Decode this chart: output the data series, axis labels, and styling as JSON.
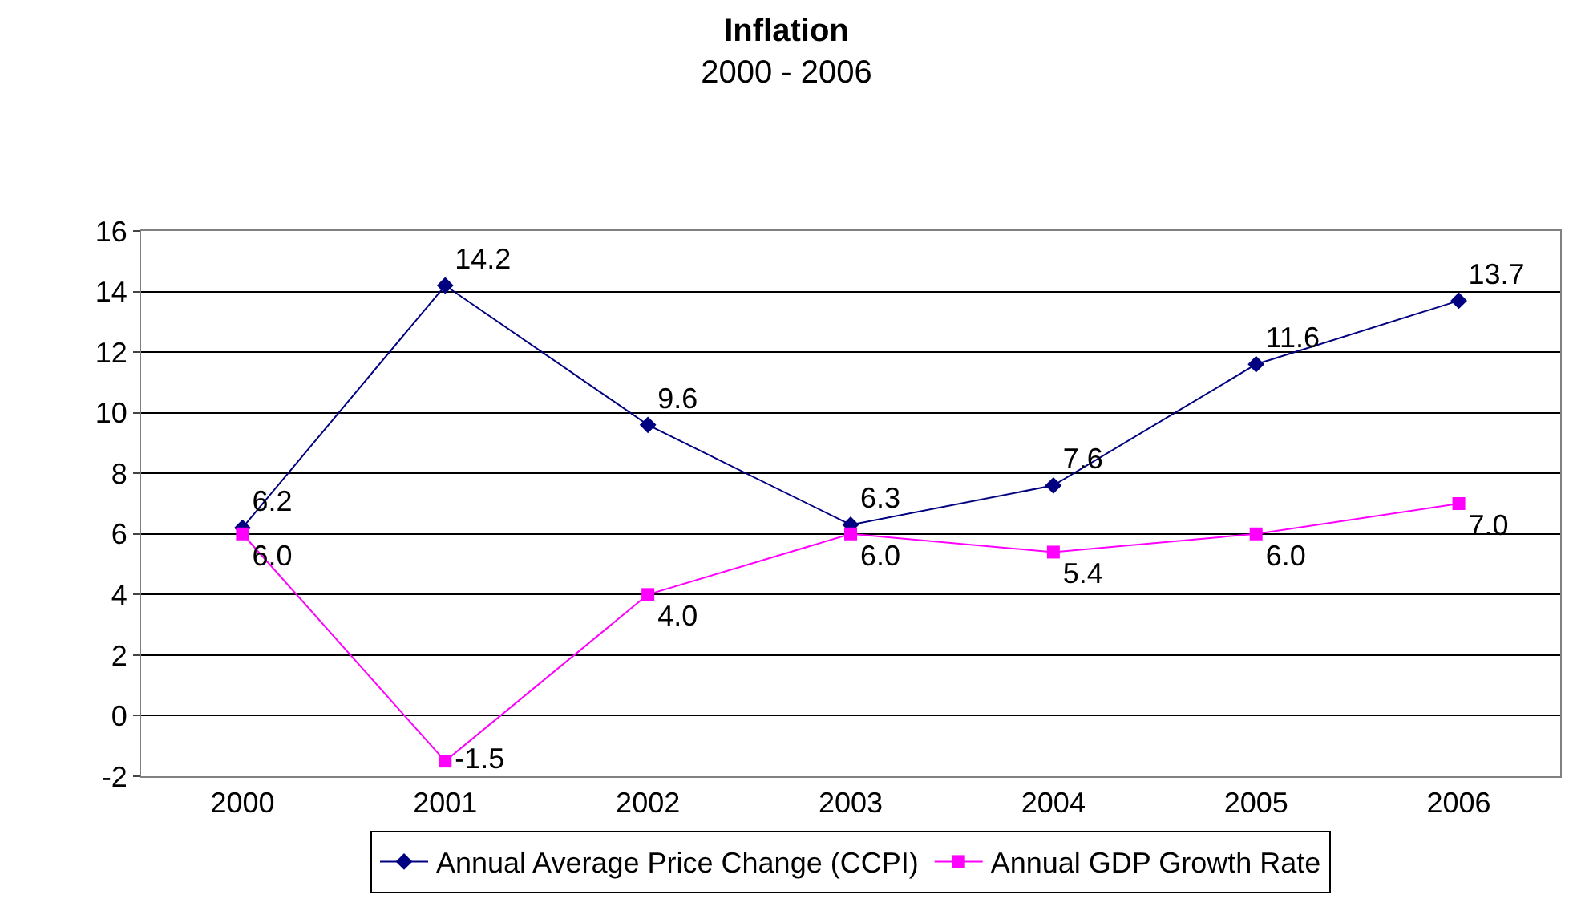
{
  "chart_data": {
    "type": "line",
    "title": "Inflation",
    "subtitle": "2000 - 2006",
    "categories": [
      "2000",
      "2001",
      "2002",
      "2003",
      "2004",
      "2005",
      "2006"
    ],
    "series": [
      {
        "name": "Annual Average Price Change (CCPI)",
        "color": "#000080",
        "marker": "diamond",
        "values": [
          6.2,
          14.2,
          9.6,
          6.3,
          7.6,
          11.6,
          13.7
        ],
        "value_labels": [
          "6.2",
          "14.2",
          "9.6",
          "6.3",
          "7.6",
          "11.6",
          "13.7"
        ]
      },
      {
        "name": "Annual GDP Growth Rate",
        "color": "#ff00ff",
        "marker": "square",
        "values": [
          6.0,
          -1.5,
          4.0,
          6.0,
          5.4,
          6.0,
          7.0
        ],
        "value_labels": [
          "6.0",
          "-1.5",
          "4.0",
          "6.0",
          "5.4",
          "6.0",
          "7.0"
        ]
      }
    ],
    "ylim": [
      -2,
      16
    ],
    "yticks": [
      -2,
      0,
      2,
      4,
      6,
      8,
      10,
      12,
      14,
      16
    ],
    "grid": "y",
    "legend": "bottom",
    "line_style": "solid"
  }
}
